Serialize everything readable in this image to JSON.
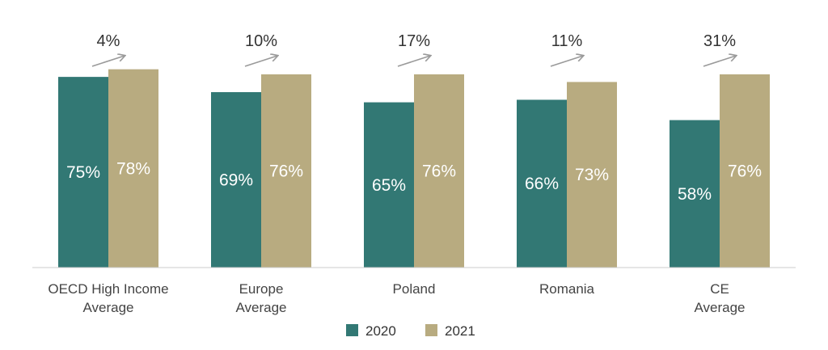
{
  "chart_data": {
    "type": "bar",
    "categories": [
      [
        "OECD High Income",
        "Average"
      ],
      [
        "Europe",
        "Average"
      ],
      [
        "Poland"
      ],
      [
        "Romania"
      ],
      [
        "CE",
        "Average"
      ]
    ],
    "series": [
      {
        "name": "2020",
        "values": [
          75,
          69,
          65,
          66,
          58
        ],
        "labels": [
          "75%",
          "69%",
          "65%",
          "66%",
          "58%"
        ]
      },
      {
        "name": "2021",
        "values": [
          78,
          76,
          76,
          73,
          76
        ],
        "labels": [
          "78%",
          "76%",
          "76%",
          "73%",
          "76%"
        ]
      }
    ],
    "changes": [
      "4%",
      "10%",
      "17%",
      "11%",
      "31%"
    ],
    "ylim": [
      0,
      100
    ],
    "grid": false,
    "legend": "bottom-center"
  },
  "colors": {
    "series_2020": "#327874",
    "series_2021": "#b8ab80",
    "axis": "#cccccc",
    "arrow": "#9a9a9a"
  }
}
